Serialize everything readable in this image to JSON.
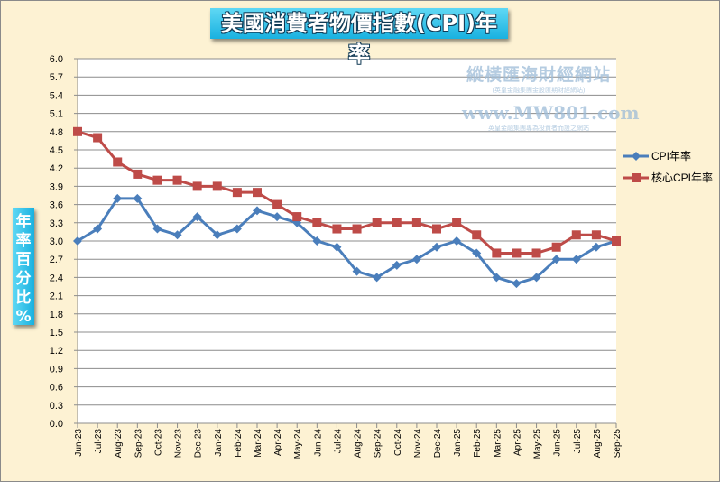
{
  "chart_data": {
    "type": "line",
    "title": "美國消費者物價指數(CPI)年率",
    "ylabel": "年率百分比%",
    "xlabel": "",
    "ylim": [
      0,
      6.0
    ],
    "ytick_step": 0.3,
    "grid": true,
    "legend_position": "right",
    "categories": [
      "Jun-23",
      "Jul-23",
      "Aug-23",
      "Sep-23",
      "Oct-23",
      "Nov-23",
      "Dec-23",
      "Jan-24",
      "Feb-24",
      "Mar-24",
      "Apr-24",
      "May-24",
      "Jun-24",
      "Jul-24",
      "Aug-24",
      "Sep-24",
      "Oct-24",
      "Nov-24",
      "Dec-24",
      "Jan-25",
      "Feb-25",
      "Mar-25",
      "Apr-25",
      "May-25",
      "Jun-25",
      "Jul-25",
      "Aug-25",
      "Sep-25"
    ],
    "series": [
      {
        "name": "CPI年率",
        "color": "#4a7ebb",
        "marker": "diamond",
        "values": [
          3.0,
          3.2,
          3.7,
          3.7,
          3.2,
          3.1,
          3.4,
          3.1,
          3.2,
          3.5,
          3.4,
          3.3,
          3.0,
          2.9,
          2.5,
          2.4,
          2.6,
          2.7,
          2.9,
          3.0,
          2.8,
          2.4,
          2.3,
          2.4,
          2.7,
          2.7,
          2.9,
          3.0
        ]
      },
      {
        "name": "核心CPI年率",
        "color": "#be4b48",
        "marker": "square",
        "values": [
          4.8,
          4.7,
          4.3,
          4.1,
          4.0,
          4.0,
          3.9,
          3.9,
          3.8,
          3.8,
          3.6,
          3.4,
          3.3,
          3.2,
          3.2,
          3.3,
          3.3,
          3.3,
          3.2,
          3.3,
          3.1,
          2.8,
          2.8,
          2.8,
          2.9,
          3.1,
          3.1,
          3.0
        ]
      }
    ]
  },
  "ylabel_chars": [
    "年",
    "率",
    "百",
    "分",
    "比",
    "%"
  ],
  "watermark": {
    "line1": "縱橫匯海財經網站",
    "line2": "(英皇金融集團金股匯期財經網站)",
    "line3": "www.MW801.com",
    "line4": "英皇金融集團專為投資者而設之網站"
  }
}
